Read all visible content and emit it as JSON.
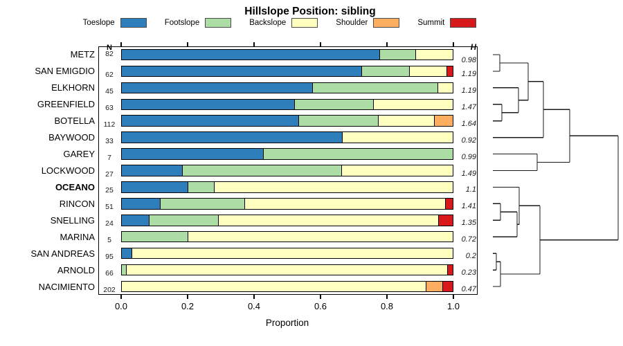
{
  "title": "Hillslope Position: sibling",
  "legend": {
    "items": [
      {
        "label": "Toeslope",
        "color": "#2E7EBB"
      },
      {
        "label": "Footslope",
        "color": "#ABDDA4"
      },
      {
        "label": "Backslope",
        "color": "#FFFFBF"
      },
      {
        "label": "Shoulder",
        "color": "#FDAE61"
      },
      {
        "label": "Summit",
        "color": "#D7191C"
      }
    ]
  },
  "table": {
    "n_header": "N",
    "h_header": "H"
  },
  "axis": {
    "label": "Proportion",
    "ticks": [
      "0.0",
      "0.2",
      "0.4",
      "0.6",
      "0.8",
      "1.0"
    ],
    "range": [
      0,
      1
    ]
  },
  "chart_data": {
    "type": "bar",
    "stacked": true,
    "orientation": "horizontal",
    "title": "Hillslope Position: sibling",
    "xlabel": "Proportion",
    "xlim": [
      0,
      1
    ],
    "grid": false,
    "legend_position": "top",
    "categories": [
      "Toeslope",
      "Footslope",
      "Backslope",
      "Shoulder",
      "Summit"
    ],
    "colors": [
      "#2E7EBB",
      "#ABDDA4",
      "#FFFFBF",
      "#FDAE61",
      "#D7191C"
    ],
    "rows": [
      {
        "name": "METZ",
        "n": 82,
        "h": "0.98",
        "bold": false,
        "values": [
          0.78,
          0.11,
          0.11,
          0,
          0
        ]
      },
      {
        "name": "SAN EMIGDIO",
        "n": 62,
        "h": "1.19",
        "bold": false,
        "values": [
          0.726,
          0.145,
          0.113,
          0,
          0.016
        ]
      },
      {
        "name": "ELKHORN",
        "n": 45,
        "h": "1.19",
        "bold": false,
        "values": [
          0.578,
          0.378,
          0.044,
          0,
          0
        ]
      },
      {
        "name": "GREENFIELD",
        "n": 63,
        "h": "1.47",
        "bold": false,
        "values": [
          0.524,
          0.238,
          0.238,
          0,
          0
        ]
      },
      {
        "name": "BOTELLA",
        "n": 112,
        "h": "1.64",
        "bold": false,
        "values": [
          0.536,
          0.241,
          0.169,
          0.054,
          0
        ]
      },
      {
        "name": "BAYWOOD",
        "n": 33,
        "h": "0.92",
        "bold": false,
        "values": [
          0.667,
          0,
          0.333,
          0,
          0
        ]
      },
      {
        "name": "GAREY",
        "n": 7,
        "h": "0.99",
        "bold": false,
        "values": [
          0.429,
          0.571,
          0,
          0,
          0
        ]
      },
      {
        "name": "LOCKWOOD",
        "n": 27,
        "h": "1.49",
        "bold": false,
        "values": [
          0.185,
          0.481,
          0.334,
          0,
          0
        ]
      },
      {
        "name": "OCEANO",
        "n": 25,
        "h": "1.1",
        "bold": true,
        "values": [
          0.2,
          0.08,
          0.72,
          0,
          0
        ]
      },
      {
        "name": "RINCON",
        "n": 51,
        "h": "1.41",
        "bold": false,
        "values": [
          0.118,
          0.255,
          0.607,
          0,
          0.02
        ]
      },
      {
        "name": "SNELLING",
        "n": 24,
        "h": "1.35",
        "bold": false,
        "values": [
          0.083,
          0.209,
          0.666,
          0,
          0.042
        ]
      },
      {
        "name": "MARINA",
        "n": 5,
        "h": "0.72",
        "bold": false,
        "values": [
          0,
          0.2,
          0.8,
          0,
          0
        ]
      },
      {
        "name": "SAN ANDREAS",
        "n": 95,
        "h": "0.2",
        "bold": false,
        "values": [
          0.032,
          0,
          0.968,
          0,
          0
        ]
      },
      {
        "name": "ARNOLD",
        "n": 66,
        "h": "0.23",
        "bold": false,
        "values": [
          0,
          0.015,
          0.97,
          0,
          0.015
        ]
      },
      {
        "name": "NACIMIENTO",
        "n": 202,
        "h": "0.47",
        "bold": false,
        "values": [
          0,
          0,
          0.921,
          0.049,
          0.03
        ]
      }
    ],
    "dendrogram": {
      "leaf_x": 712,
      "root_x": 893,
      "merges": [
        {
          "a": "L0",
          "b": "L1",
          "x": 722
        },
        {
          "a": "L3",
          "b": "L4",
          "x": 725
        },
        {
          "a": "L2",
          "b": "M1",
          "x": 749
        },
        {
          "a": "M0",
          "b": "M2",
          "x": 763
        },
        {
          "a": "M3",
          "b": "L5",
          "x": 785
        },
        {
          "a": "L6",
          "b": "L7",
          "x": 776
        },
        {
          "a": "M4",
          "b": "M5",
          "x": 823
        },
        {
          "a": "L9",
          "b": "L10",
          "x": 723
        },
        {
          "a": "M7",
          "b": "L11",
          "x": 747
        },
        {
          "a": "L8",
          "b": "M8",
          "x": 750
        },
        {
          "a": "L12",
          "b": "L13",
          "x": 717
        },
        {
          "a": "M10",
          "b": "L14",
          "x": 723
        },
        {
          "a": "M9",
          "b": "M11",
          "x": 780
        },
        {
          "a": "M6",
          "b": "M12",
          "x": 893
        }
      ]
    }
  }
}
